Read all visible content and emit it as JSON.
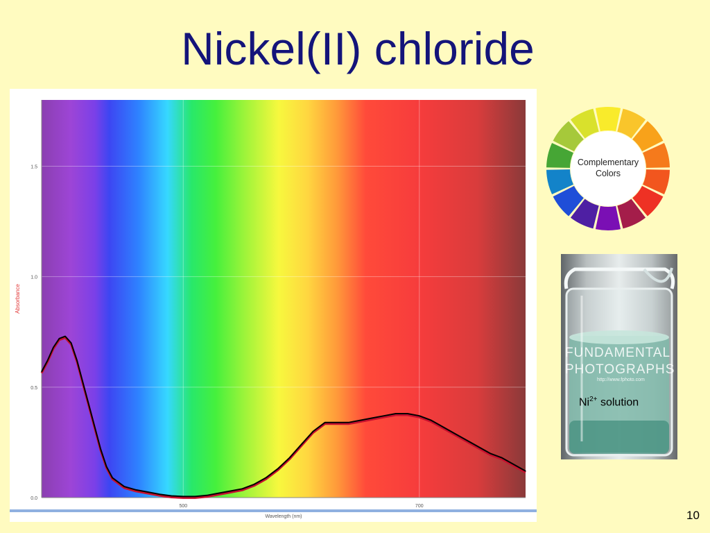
{
  "title": "Nickel(II) chloride",
  "page_number": "10",
  "color_wheel": {
    "label_line1": "Complementary",
    "label_line2": "Colors",
    "segments": [
      "#F9EB2B",
      "#F9C52B",
      "#F8A21A",
      "#F57A1C",
      "#F2561E",
      "#EE3124",
      "#A41D4A",
      "#7A0FB4",
      "#4E1FA3",
      "#1F4ED8",
      "#1383C9",
      "#46A635",
      "#A6C93A",
      "#D9E12C"
    ]
  },
  "beaker": {
    "watermark_line1": "FUNDAMENTAL",
    "watermark_line2": "PHOTOGRAPHS",
    "watermark_url": "http://www.fphoto.com",
    "label_prefix": "Ni",
    "label_sup": "2+",
    "label_suffix": " solution"
  },
  "chart_data": {
    "type": "line",
    "title": "",
    "xlabel": "Wavelength (nm)",
    "ylabel": "Absorbance",
    "xlim": [
      380,
      790
    ],
    "ylim": [
      0,
      1.8
    ],
    "xticks": [
      500,
      700
    ],
    "yticks": [
      0.0,
      0.5,
      1.0,
      1.5
    ],
    "ytick_labels": [
      "0.0",
      "0.5",
      "1.0",
      "1.5"
    ],
    "xtick_labels": [
      "500",
      "700"
    ],
    "grid": true,
    "spectrum_background": true,
    "series": [
      {
        "color": "#000000",
        "x": [
          380,
          385,
          390,
          395,
          400,
          405,
          410,
          415,
          420,
          425,
          430,
          435,
          440,
          450,
          460,
          470,
          480,
          490,
          500,
          510,
          520,
          530,
          540,
          550,
          560,
          570,
          580,
          590,
          600,
          610,
          620,
          630,
          640,
          650,
          660,
          670,
          680,
          690,
          700,
          710,
          720,
          730,
          740,
          750,
          760,
          770,
          780,
          790
        ],
        "y": [
          0.57,
          0.62,
          0.68,
          0.72,
          0.73,
          0.7,
          0.62,
          0.52,
          0.42,
          0.32,
          0.22,
          0.14,
          0.09,
          0.05,
          0.035,
          0.025,
          0.015,
          0.008,
          0.005,
          0.005,
          0.01,
          0.02,
          0.03,
          0.04,
          0.06,
          0.09,
          0.13,
          0.18,
          0.24,
          0.3,
          0.34,
          0.34,
          0.34,
          0.35,
          0.36,
          0.37,
          0.38,
          0.38,
          0.37,
          0.35,
          0.32,
          0.29,
          0.26,
          0.23,
          0.2,
          0.18,
          0.15,
          0.12
        ]
      }
    ]
  }
}
